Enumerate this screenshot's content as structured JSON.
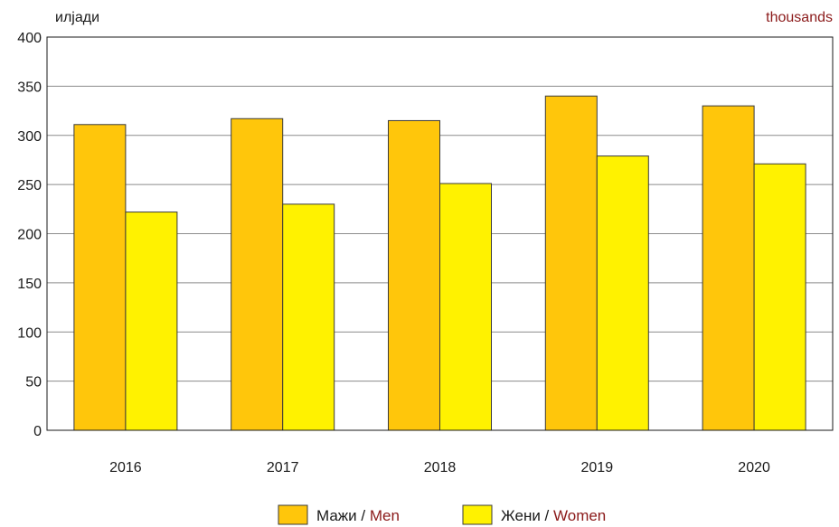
{
  "chart_data": {
    "type": "bar",
    "unit_left": "илјади",
    "unit_right": "thousands",
    "categories": [
      "2016",
      "2017",
      "2018",
      "2019",
      "2020"
    ],
    "series": [
      {
        "name_mk": "Мажи",
        "name_en": "Men",
        "color": "#ffc60b",
        "values": [
          311,
          317,
          315,
          340,
          330
        ]
      },
      {
        "name_mk": "Жени",
        "name_en": "Women",
        "color": "#fff200",
        "values": [
          222,
          230,
          251,
          279,
          271
        ]
      }
    ],
    "ylim": [
      0,
      400
    ],
    "yticks": [
      0,
      50,
      100,
      150,
      200,
      250,
      300,
      350,
      400
    ],
    "grid": true,
    "legend_position": "bottom",
    "legend_separator": " / ",
    "accent_color": "#8b1a1a"
  }
}
